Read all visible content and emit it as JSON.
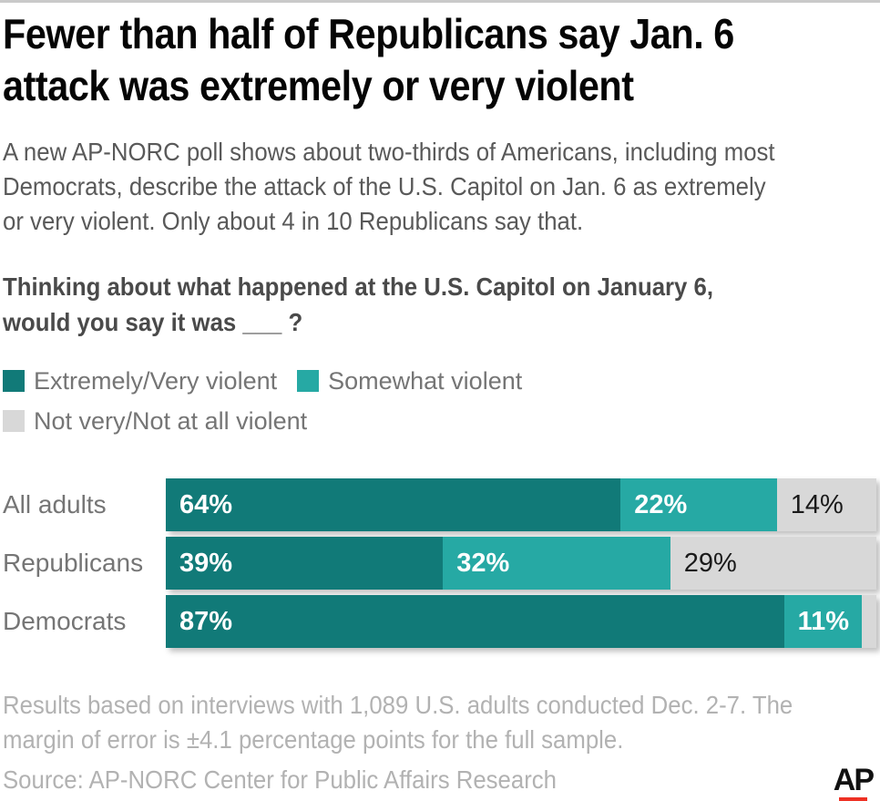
{
  "header": {
    "title_lines": [
      "Fewer than half of Republicans say Jan. 6",
      "attack was extremely or very violent"
    ]
  },
  "intro": {
    "lines": [
      "A new AP-NORC poll shows about two-thirds of Americans, including most",
      "Democrats, describe the attack of the U.S. Capitol on Jan. 6 as extremely",
      "or very violent. Only about 4 in 10 Republicans say that."
    ]
  },
  "question": {
    "lines": [
      "Thinking about what happened at the U.S. Capitol on January 6,",
      "would you say it was ___ ?"
    ]
  },
  "chart_data": {
    "type": "bar",
    "orientation": "horizontal",
    "stacked": true,
    "title": "Thinking about what happened at the U.S. Capitol on January 6, would you say it was ___ ?",
    "categories": [
      "All adults",
      "Republicans",
      "Democrats"
    ],
    "series": [
      {
        "name": "Extremely/Very violent",
        "color": "#117a78",
        "label_color": "#ffffff",
        "label_bold": true,
        "values": [
          64,
          39,
          87
        ]
      },
      {
        "name": "Somewhat violent",
        "color": "#26a9a4",
        "label_color": "#ffffff",
        "label_bold": true,
        "values": [
          22,
          32,
          11
        ]
      },
      {
        "name": "Not very/Not at all violent",
        "color": "#d8d8d8",
        "label_color": "#1a1a1a",
        "label_bold": false,
        "values": [
          14,
          29,
          2
        ]
      }
    ],
    "value_labels": [
      [
        "64%",
        "22%",
        "14%"
      ],
      [
        "39%",
        "32%",
        "29%"
      ],
      [
        "87%",
        "11%",
        ""
      ]
    ],
    "xlim": [
      0,
      100
    ],
    "legend_position": "top-left",
    "grid": false,
    "axis_labels": "none"
  },
  "footnote": {
    "lines": [
      "Results based on interviews with 1,089 U.S. adults conducted Dec. 2-7. The",
      "margin of error is ±4.1 percentage points for the full sample."
    ]
  },
  "source": {
    "text": "Source: AP-NORC Center for Public Affairs Research"
  },
  "branding": {
    "logo_text": "AP",
    "logo_color": "#111111",
    "logo_bar_color": "#ee3124"
  }
}
